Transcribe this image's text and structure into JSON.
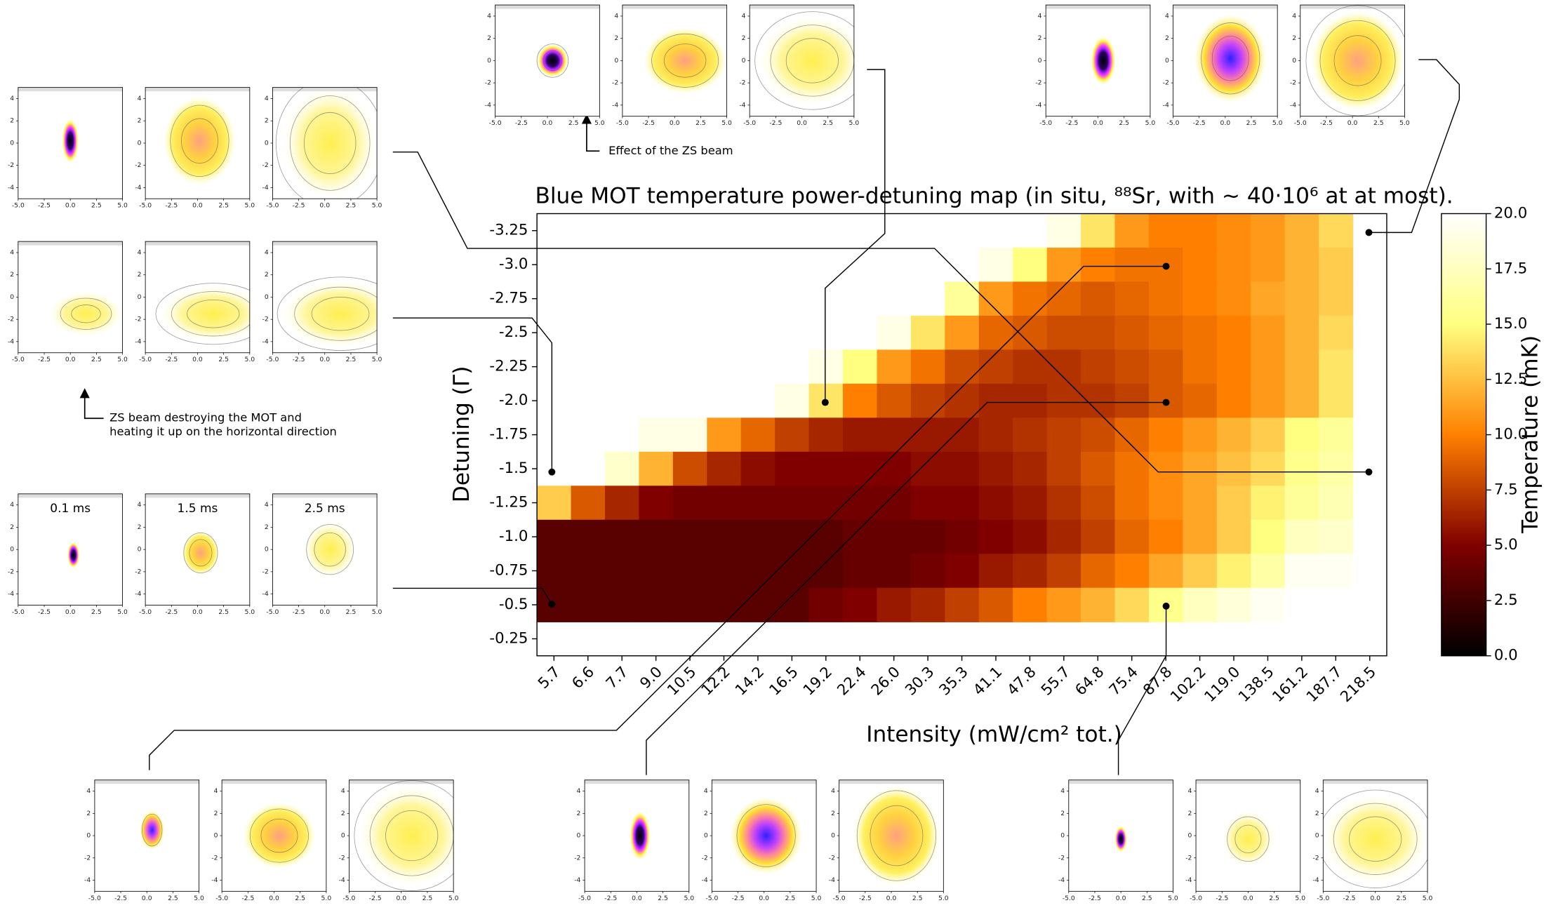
{
  "chart_data": {
    "type": "heatmap",
    "title": "Blue MOT temperature power-detuning map (in situ, ⁸⁸Sr, with ∼ 40·10⁶ at at most).",
    "x_label": "Intensity (mW/cm² tot.)",
    "y_label": "Detuning (Γ)",
    "categories": [
      "5.7",
      "6.6",
      "7.7",
      "9.0",
      "10.5",
      "12.2",
      "14.2",
      "16.5",
      "19.2",
      "22.4",
      "26.0",
      "30.3",
      "35.3",
      "41.1",
      "47.8",
      "55.7",
      "64.8",
      "75.4",
      "87.8",
      "102.2",
      "119.0",
      "138.5",
      "161.2",
      "187.7",
      "218.5"
    ],
    "y_categories": [
      "-3.25",
      "-3.0",
      "-2.75",
      "-2.5",
      "-2.25",
      "-2.0",
      "-1.75",
      "-1.5",
      "-1.25",
      "-1.0",
      "-0.75",
      "-0.5",
      "-0.25"
    ],
    "values": [
      [
        null,
        null,
        null,
        null,
        null,
        null,
        null,
        null,
        null,
        null,
        null,
        null,
        null,
        null,
        null,
        19,
        14,
        11,
        10,
        10,
        10.5,
        11,
        12,
        13.5,
        null
      ],
      [
        null,
        null,
        null,
        null,
        null,
        null,
        null,
        null,
        null,
        null,
        null,
        null,
        null,
        19,
        15,
        11,
        10,
        9.5,
        9.5,
        10,
        10.5,
        11,
        12,
        13,
        null
      ],
      [
        null,
        null,
        null,
        null,
        null,
        null,
        null,
        null,
        null,
        null,
        null,
        null,
        16,
        11,
        9.5,
        9,
        8.5,
        9,
        9.5,
        10,
        10.5,
        11.5,
        12,
        13,
        null
      ],
      [
        null,
        null,
        null,
        null,
        null,
        null,
        null,
        null,
        null,
        null,
        19,
        14,
        11,
        9,
        8.5,
        8,
        8,
        8.5,
        9,
        9.5,
        10,
        11,
        12,
        13.5,
        null
      ],
      [
        null,
        null,
        null,
        null,
        null,
        null,
        null,
        null,
        19,
        15,
        11,
        9.5,
        8,
        7.5,
        7,
        7,
        7.5,
        8,
        8.5,
        9.5,
        10,
        11,
        12,
        14,
        null
      ],
      [
        null,
        null,
        null,
        null,
        null,
        null,
        null,
        19,
        14,
        10,
        8.5,
        7.5,
        7,
        6.5,
        6.5,
        7,
        7,
        7.5,
        8.5,
        9,
        10,
        11,
        12,
        14,
        null
      ],
      [
        null,
        null,
        null,
        19,
        19,
        11,
        9,
        7.5,
        6.5,
        6,
        6,
        6,
        6,
        6.5,
        7,
        7.5,
        8,
        9,
        10,
        11,
        12,
        13,
        15,
        16,
        null
      ],
      [
        null,
        null,
        18,
        12,
        8,
        6.5,
        5.5,
        5,
        5,
        5,
        5,
        5.5,
        5.5,
        6,
        6.5,
        7.5,
        8.5,
        9.5,
        10.5,
        11.5,
        12.5,
        13.5,
        15.5,
        16.5,
        null
      ],
      [
        13,
        8.5,
        6.5,
        5,
        4.5,
        4.5,
        4.5,
        4.5,
        4.5,
        4.5,
        4.5,
        5,
        5,
        5.5,
        6,
        7,
        8,
        9.5,
        10.5,
        11.5,
        13,
        14.5,
        16,
        17,
        null
      ],
      [
        3.5,
        3.5,
        3.5,
        3.5,
        3.5,
        3.5,
        3.5,
        3.5,
        3.5,
        4,
        4,
        4,
        4.5,
        5,
        5.5,
        6.5,
        7.5,
        9,
        10,
        11.5,
        13,
        15,
        17.5,
        18,
        null
      ],
      [
        3.5,
        3.5,
        3.5,
        3.5,
        3.5,
        3.5,
        3.5,
        3.5,
        3.5,
        4,
        4,
        4.5,
        5,
        6,
        6.5,
        7.5,
        9,
        10,
        11.5,
        13,
        14.5,
        16.5,
        19.5,
        19.5,
        null
      ],
      [
        3.5,
        3.5,
        3.5,
        3.5,
        3.5,
        3.5,
        3.5,
        3.5,
        4.5,
        5,
        6,
        6.5,
        7.5,
        8.5,
        10,
        11,
        12,
        13.5,
        15.5,
        17.5,
        18.5,
        19.5,
        null,
        null,
        null
      ],
      [
        null,
        null,
        null,
        null,
        null,
        null,
        null,
        null,
        null,
        null,
        null,
        null,
        null,
        null,
        null,
        null,
        null,
        null,
        null,
        null,
        null,
        null,
        null,
        null,
        null
      ]
    ],
    "colormap": "afmhot",
    "colorbar": {
      "label": "Temperature (mK)",
      "lim": [
        0,
        20
      ],
      "ticks": [
        {
          "value": 0,
          "label": "0.0"
        },
        2.5,
        {
          "value": 5,
          "label": "5.0"
        },
        7.5,
        {
          "value": 10,
          "label": "10.0"
        },
        12.5,
        {
          "value": 15,
          "label": "15.0"
        },
        17.5,
        {
          "value": 20,
          "label": "20.0"
        }
      ]
    },
    "inset_xticks": [
      {
        "value": -5,
        "label": "-5.0"
      },
      -2.5,
      {
        "value": 0,
        "label": "0.0"
      },
      2.5,
      {
        "value": 5,
        "label": "5.0"
      }
    ],
    "inset_yticks": [
      4,
      2,
      0,
      -2,
      -4
    ],
    "inset_titles": [
      "0.1 ms",
      "1.5 ms",
      "2.5 ms"
    ],
    "annotations": [
      "Effect of the ZS beam",
      "ZS beam destroying the MOT and",
      "heating it up on the horizontal direction"
    ]
  }
}
